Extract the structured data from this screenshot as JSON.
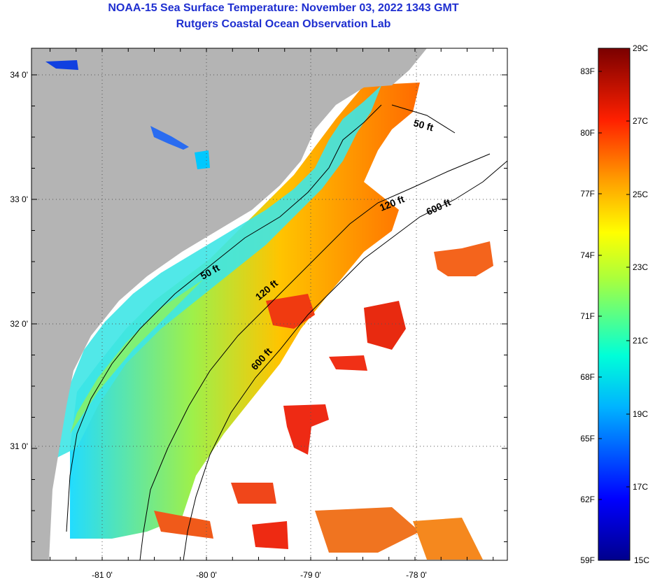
{
  "header": {
    "title": "NOAA-15 Sea Surface Temperature:  November 03, 2022 1343 GMT",
    "subtitle": "Rutgers Coastal Ocean Observation Lab"
  },
  "map": {
    "lat_labels": [
      "34 0'",
      "33 0'",
      "32 0'",
      "31 0'"
    ],
    "lon_labels": [
      "-81 0'",
      "-80 0'",
      "-79 0'",
      "-78 0'"
    ],
    "contour_labels": [
      "50 ft",
      "120 ft",
      "600 ft",
      "50 ft",
      "120 ft",
      "600 ft"
    ],
    "colors": {
      "land": "#b4b4b4",
      "cloud": "#ffffff"
    }
  },
  "colorbar": {
    "fahrenheit_labels": [
      "83F",
      "80F",
      "77F",
      "74F",
      "71F",
      "68F",
      "65F",
      "62F",
      "59F"
    ],
    "celsius_labels": [
      "29C",
      "27C",
      "25C",
      "23C",
      "21C",
      "19C",
      "17C",
      "15C"
    ],
    "range_c": [
      15,
      29
    ]
  }
}
